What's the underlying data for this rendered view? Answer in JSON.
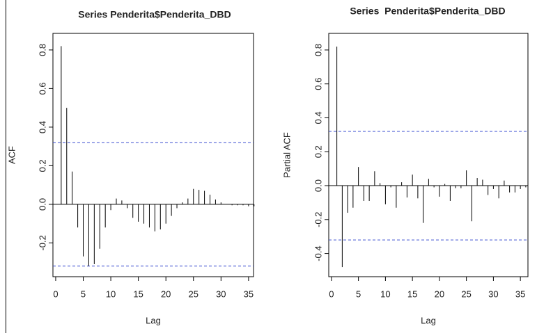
{
  "chart_data": [
    {
      "type": "bar",
      "title": "Series Penderita$Penderita_DBD",
      "x_label": "Lag",
      "y_label": "ACF",
      "x": [
        1,
        2,
        3,
        4,
        5,
        6,
        7,
        8,
        9,
        10,
        11,
        12,
        13,
        14,
        15,
        16,
        17,
        18,
        19,
        20,
        21,
        22,
        23,
        24,
        25,
        26,
        27,
        28,
        29,
        30,
        31,
        32,
        33,
        34,
        35,
        36
      ],
      "values": [
        0.82,
        0.5,
        0.17,
        -0.12,
        -0.27,
        -0.32,
        -0.31,
        -0.23,
        -0.12,
        -0.03,
        0.03,
        0.02,
        -0.02,
        -0.07,
        -0.09,
        -0.1,
        -0.12,
        -0.14,
        -0.13,
        -0.1,
        -0.06,
        -0.02,
        0.01,
        0.03,
        0.08,
        0.075,
        0.07,
        0.05,
        0.025,
        0.01,
        0.0,
        -0.005,
        -0.005,
        -0.005,
        -0.01,
        -0.01
      ],
      "color": "#000000",
      "ci": [
        -0.32,
        0.32
      ],
      "ci_color": "#3b4fd0",
      "xlim": [
        -0.5,
        35.9
      ],
      "xticks": [
        0,
        5,
        10,
        15,
        20,
        25,
        30,
        35
      ],
      "ylim": [
        -0.375,
        0.886
      ],
      "yticks": [
        -0.2,
        {
          "value": 0,
          "label": "0.0"
        },
        0.2,
        0.4,
        0.6,
        0.8
      ]
    },
    {
      "type": "bar",
      "title": "Series  Penderita$Penderita_DBD",
      "x_label": "Lag",
      "y_label": "Partial ACF",
      "x": [
        1,
        2,
        3,
        4,
        5,
        6,
        7,
        8,
        9,
        10,
        11,
        12,
        13,
        14,
        15,
        16,
        17,
        18,
        19,
        20,
        21,
        22,
        23,
        24,
        25,
        26,
        27,
        28,
        29,
        30,
        31,
        32,
        33,
        34,
        35,
        36
      ],
      "values": [
        0.82,
        -0.48,
        -0.16,
        -0.13,
        0.11,
        -0.09,
        -0.09,
        0.085,
        0.015,
        -0.11,
        -0.01,
        -0.13,
        0.02,
        -0.07,
        0.065,
        -0.075,
        -0.22,
        0.04,
        -0.01,
        -0.065,
        0.01,
        -0.09,
        -0.015,
        -0.015,
        0.09,
        -0.21,
        0.045,
        0.035,
        -0.055,
        -0.02,
        -0.075,
        0.03,
        -0.04,
        -0.04,
        -0.02,
        -0.01
      ],
      "color": "#000000",
      "ci": [
        -0.32,
        0.32
      ],
      "ci_color": "#3b4fd0",
      "xlim": [
        -0.5,
        36.4
      ],
      "xticks": [
        0,
        5,
        10,
        15,
        20,
        25,
        30,
        35
      ],
      "ylim": [
        -0.537,
        0.898
      ],
      "yticks": [
        -0.4,
        -0.2,
        {
          "value": 0,
          "label": "0.0"
        },
        0.2,
        0.4,
        0.6,
        0.8
      ]
    }
  ]
}
